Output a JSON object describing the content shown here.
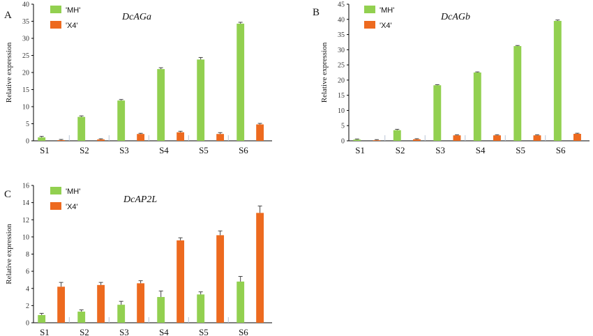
{
  "colors": {
    "MH": "#92d050",
    "X4": "#ed6a1f",
    "axis": "#000000",
    "error": "#444444",
    "tick_mark": "#b8c4d6"
  },
  "chart_data": [
    {
      "type": "bar",
      "panel": "A",
      "title": "DcAGa",
      "ylabel": "Relative expression",
      "ylim": [
        0,
        40
      ],
      "yticks": [
        0,
        5,
        10,
        15,
        20,
        25,
        30,
        35,
        40
      ],
      "categories": [
        "S1",
        "S2",
        "S3",
        "S4",
        "S5",
        "S6"
      ],
      "legend_position": "top-left",
      "series": [
        {
          "name": "'MH'",
          "color": "#92d050",
          "values": [
            1.0,
            7.0,
            11.8,
            21.0,
            23.8,
            34.3
          ],
          "errors": [
            0.3,
            0.3,
            0.3,
            0.4,
            0.6,
            0.4
          ]
        },
        {
          "name": "'X4'",
          "color": "#ed6a1f",
          "values": [
            0.2,
            0.4,
            2.0,
            2.5,
            2.0,
            4.8
          ],
          "errors": [
            0.2,
            0.2,
            0.2,
            0.3,
            0.4,
            0.3
          ]
        }
      ]
    },
    {
      "type": "bar",
      "panel": "B",
      "title": "DcAGb",
      "ylabel": "Relative expression",
      "ylim": [
        0,
        45
      ],
      "yticks": [
        0,
        5,
        10,
        15,
        20,
        25,
        30,
        35,
        40,
        45
      ],
      "categories": [
        "S1",
        "S2",
        "S3",
        "S4",
        "S5",
        "S6"
      ],
      "legend_position": "top-left",
      "series": [
        {
          "name": "'MH'",
          "color": "#92d050",
          "values": [
            0.4,
            3.5,
            18.3,
            22.5,
            31.2,
            39.5
          ],
          "errors": [
            0.2,
            0.3,
            0.2,
            0.2,
            0.2,
            0.3
          ]
        },
        {
          "name": "'X4'",
          "color": "#ed6a1f",
          "values": [
            0.2,
            0.5,
            1.8,
            1.8,
            1.8,
            2.3
          ],
          "errors": [
            0.2,
            0.2,
            0.2,
            0.2,
            0.2,
            0.2
          ]
        }
      ]
    },
    {
      "type": "bar",
      "panel": "C",
      "title": "DcAP2L",
      "ylabel": "Relative expression",
      "ylim": [
        0,
        16
      ],
      "yticks": [
        0,
        2,
        4,
        6,
        8,
        10,
        12,
        14,
        16
      ],
      "categories": [
        "S1",
        "S2",
        "S3",
        "S4",
        "S5",
        "S6"
      ],
      "legend_position": "top-left",
      "series": [
        {
          "name": "'MH'",
          "color": "#92d050",
          "values": [
            0.9,
            1.3,
            2.1,
            3.0,
            3.3,
            4.8
          ],
          "errors": [
            0.2,
            0.2,
            0.4,
            0.7,
            0.3,
            0.6
          ]
        },
        {
          "name": "'X4'",
          "color": "#ed6a1f",
          "values": [
            4.2,
            4.4,
            4.6,
            9.6,
            10.2,
            12.8
          ],
          "errors": [
            0.5,
            0.3,
            0.3,
            0.3,
            0.5,
            0.8
          ]
        }
      ]
    }
  ]
}
